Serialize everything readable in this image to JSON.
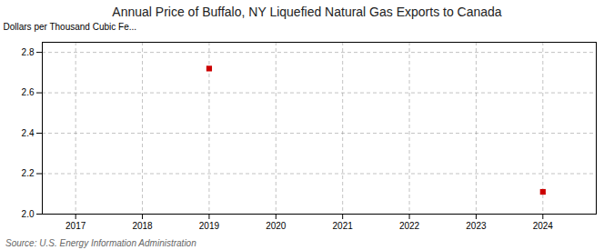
{
  "chart_data": {
    "type": "scatter",
    "title": "Annual Price of Buffalo, NY Liquefied Natural Gas  Exports to Canada",
    "ylabel": "Dollars per Thousand Cubic Fe...",
    "source": "Source: U.S. Energy Information Administration",
    "x": [
      2019,
      2024
    ],
    "values": [
      2.72,
      2.11
    ],
    "color": "#cc0000",
    "marker": "square",
    "xlim": [
      2016.5,
      2024.8
    ],
    "ylim": [
      2.0,
      2.85
    ],
    "xticks": [
      2017,
      2018,
      2019,
      2020,
      2021,
      2022,
      2023,
      2024
    ],
    "yticks": [
      {
        "value": 2.0,
        "label": "2.0"
      },
      2.2,
      2.4,
      2.6,
      2.8
    ],
    "grid": true
  }
}
